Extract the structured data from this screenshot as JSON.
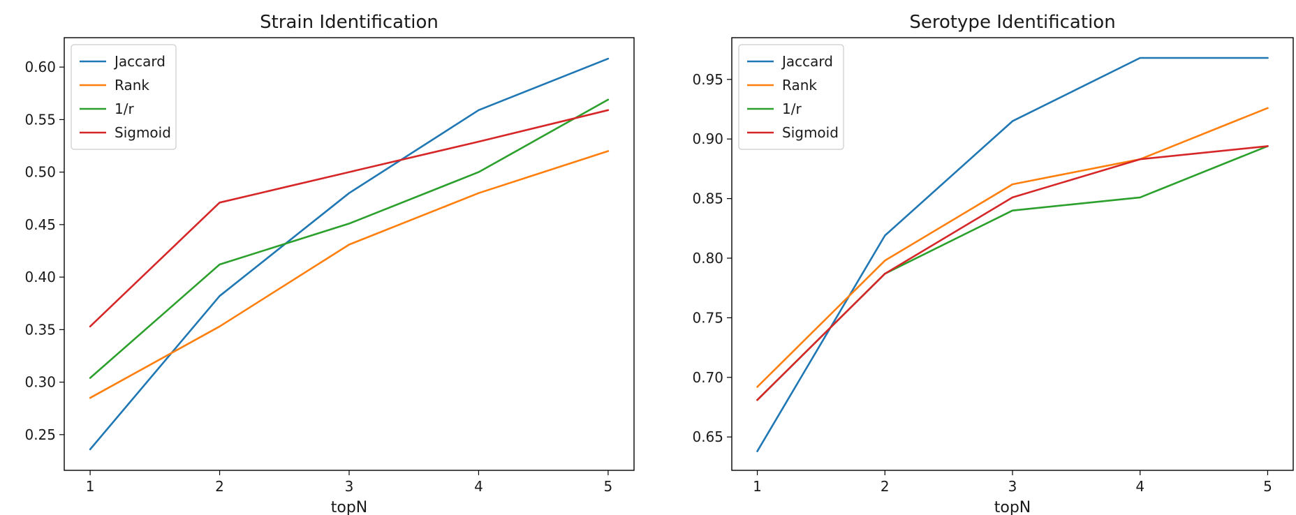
{
  "chart_data": [
    {
      "type": "line",
      "title": "Strain Identification",
      "xlabel": "topN",
      "ylabel": "",
      "x": [
        1,
        2,
        3,
        4,
        5
      ],
      "xticks": [
        "1",
        "2",
        "3",
        "4",
        "5"
      ],
      "xlim": [
        0.8,
        5.2
      ],
      "ylim": [
        0.216,
        0.628
      ],
      "yticks": [
        "0.25",
        "0.30",
        "0.35",
        "0.40",
        "0.45",
        "0.50",
        "0.55",
        "0.60"
      ],
      "grid": false,
      "legend_position": "top-left",
      "series": [
        {
          "name": "Jaccard",
          "color": "#1f77b4",
          "values": [
            0.236,
            0.382,
            0.48,
            0.559,
            0.608
          ]
        },
        {
          "name": "Rank",
          "color": "#ff7f0e",
          "values": [
            0.285,
            0.353,
            0.431,
            0.48,
            0.52
          ]
        },
        {
          "name": "1/r",
          "color": "#2ca02c",
          "values": [
            0.304,
            0.412,
            0.451,
            0.5,
            0.569
          ]
        },
        {
          "name": "Sigmoid",
          "color": "#d62728",
          "values": [
            0.353,
            0.471,
            0.5,
            0.529,
            0.559
          ]
        }
      ]
    },
    {
      "type": "line",
      "title": "Serotype Identification",
      "xlabel": "topN",
      "ylabel": "",
      "x": [
        1,
        2,
        3,
        4,
        5
      ],
      "xticks": [
        "1",
        "2",
        "3",
        "4",
        "5"
      ],
      "xlim": [
        0.8,
        5.2
      ],
      "ylim": [
        0.622,
        0.985
      ],
      "yticks": [
        "0.65",
        "0.70",
        "0.75",
        "0.80",
        "0.85",
        "0.90",
        "0.95"
      ],
      "grid": false,
      "legend_position": "top-left",
      "series": [
        {
          "name": "Jaccard",
          "color": "#1f77b4",
          "values": [
            0.638,
            0.819,
            0.915,
            0.968,
            0.968
          ]
        },
        {
          "name": "Rank",
          "color": "#ff7f0e",
          "values": [
            0.692,
            0.798,
            0.862,
            0.883,
            0.926
          ]
        },
        {
          "name": "1/r",
          "color": "#2ca02c",
          "values": [
            0.681,
            0.787,
            0.84,
            0.851,
            0.894
          ]
        },
        {
          "name": "Sigmoid",
          "color": "#d62728",
          "values": [
            0.681,
            0.787,
            0.851,
            0.883,
            0.894
          ]
        }
      ]
    }
  ]
}
